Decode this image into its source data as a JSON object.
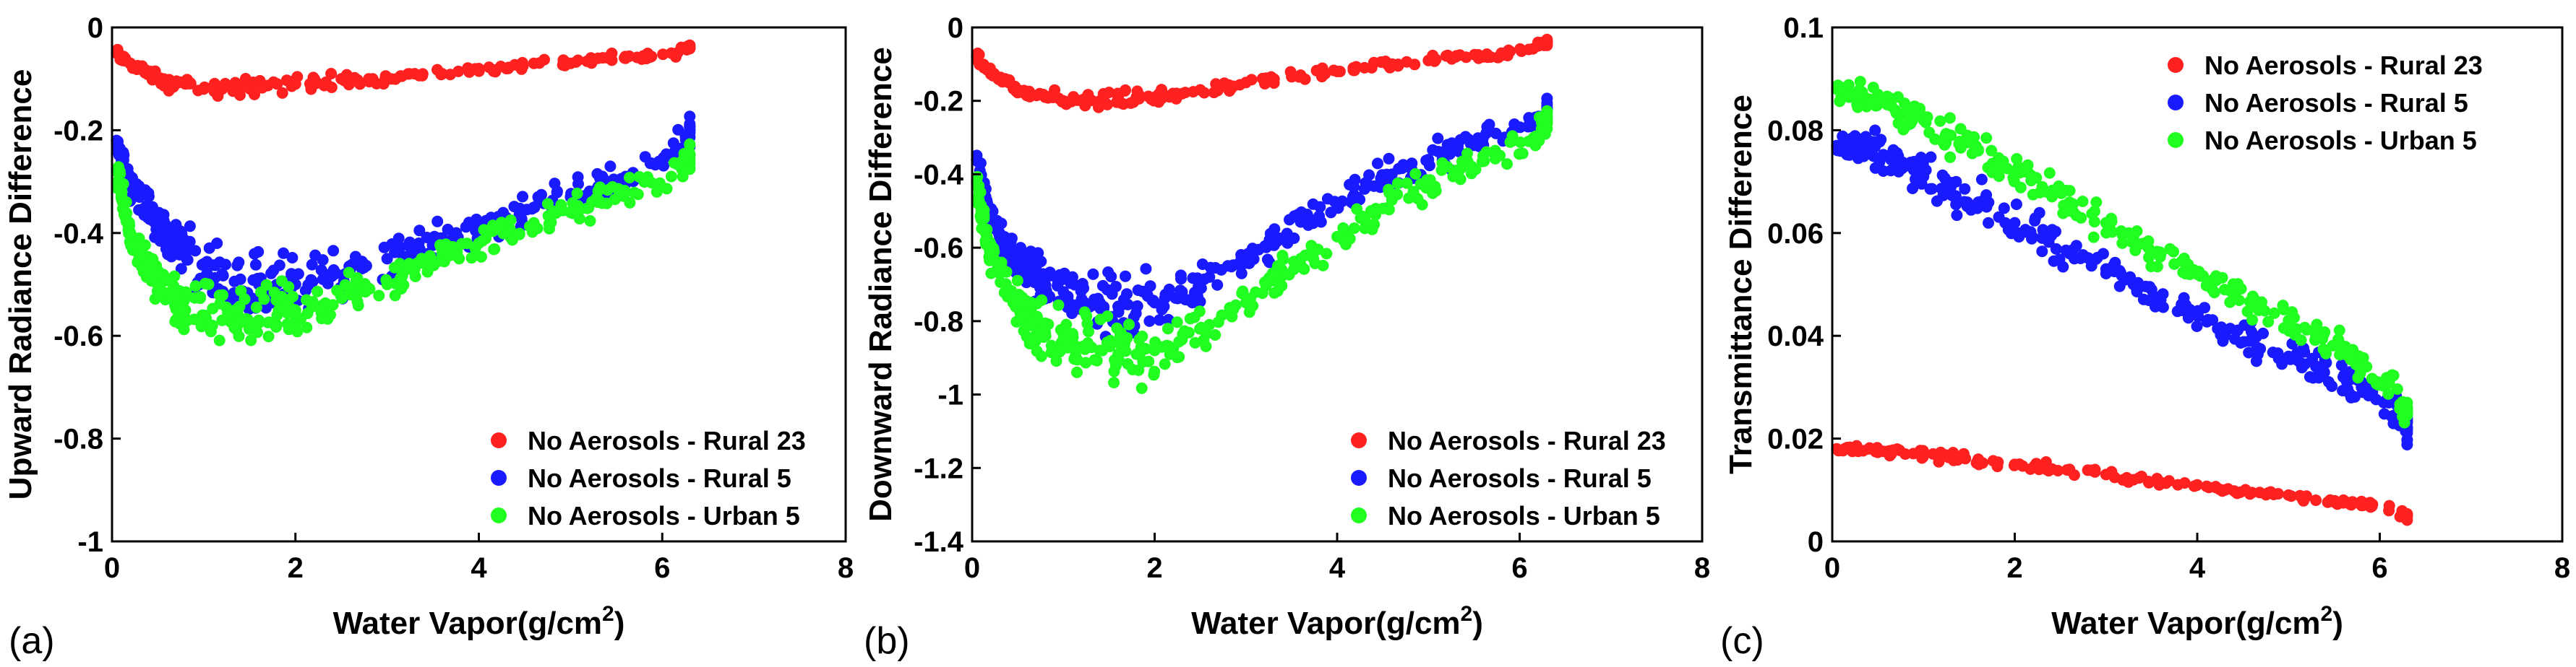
{
  "colors": {
    "red": "#ff2020",
    "blue": "#1a1aff",
    "green": "#20ff20"
  },
  "chart_data": [
    {
      "panel": "(a)",
      "type": "scatter",
      "xlabel": "Water Vapor(g/cm",
      "xlabel_sup": "2",
      "xlabel_end": ")",
      "ylabel": "Upward Radiance Difference",
      "xlim": [
        0,
        8
      ],
      "ylim": [
        -1,
        0
      ],
      "xticks": [
        0,
        2,
        4,
        6,
        8
      ],
      "xtick_labels": [
        "0",
        "2",
        "4",
        "6",
        "8"
      ],
      "yticks": [
        0,
        -0.2,
        -0.4,
        -0.6,
        -0.8,
        -1
      ],
      "ytick_labels": [
        "0",
        "-0.2",
        "-0.4",
        "-0.6",
        "-0.8",
        "-1"
      ],
      "legend_position": "lower-right",
      "series": [
        {
          "name": "No Aerosols - Rural 23",
          "color": "red",
          "x": [
            0.05,
            0.1,
            0.2,
            0.3,
            0.4,
            0.5,
            0.6,
            0.8,
            1.0,
            1.2,
            1.4,
            1.6,
            1.8,
            2.0,
            2.2,
            2.5,
            2.8,
            3.0,
            3.3,
            3.6,
            4.0,
            4.3,
            4.6,
            5.0,
            5.3,
            5.6,
            5.8,
            6.1,
            6.3
          ],
          "y": [
            -0.05,
            -0.06,
            -0.07,
            -0.08,
            -0.09,
            -0.1,
            -0.11,
            -0.11,
            -0.12,
            -0.12,
            -0.12,
            -0.11,
            -0.11,
            -0.11,
            -0.11,
            -0.1,
            -0.1,
            -0.1,
            -0.09,
            -0.09,
            -0.08,
            -0.08,
            -0.07,
            -0.07,
            -0.06,
            -0.06,
            -0.06,
            -0.05,
            -0.04
          ]
        },
        {
          "name": "No Aerosols - Rural 5",
          "color": "blue",
          "x": [
            0.05,
            0.1,
            0.15,
            0.2,
            0.3,
            0.4,
            0.5,
            0.6,
            0.7,
            0.8,
            1.0,
            1.2,
            1.4,
            1.6,
            1.8,
            2.0,
            2.3,
            2.6,
            3.0,
            3.3,
            3.6,
            4.0,
            4.3,
            4.6,
            5.0,
            5.3,
            5.6,
            6.1,
            6.3
          ],
          "y": [
            -0.22,
            -0.25,
            -0.28,
            -0.3,
            -0.33,
            -0.36,
            -0.38,
            -0.4,
            -0.42,
            -0.44,
            -0.46,
            -0.48,
            -0.49,
            -0.5,
            -0.5,
            -0.5,
            -0.49,
            -0.47,
            -0.45,
            -0.43,
            -0.41,
            -0.39,
            -0.37,
            -0.35,
            -0.33,
            -0.31,
            -0.29,
            -0.25,
            -0.2
          ]
        },
        {
          "name": "No Aerosols - Urban 5",
          "color": "green",
          "x": [
            0.05,
            0.1,
            0.15,
            0.2,
            0.3,
            0.4,
            0.5,
            0.6,
            0.7,
            0.8,
            1.0,
            1.2,
            1.4,
            1.6,
            1.8,
            2.0,
            2.3,
            2.6,
            3.0,
            3.3,
            3.6,
            4.0,
            4.3,
            4.6,
            5.0,
            5.3,
            5.6,
            6.1,
            6.3
          ],
          "y": [
            -0.28,
            -0.33,
            -0.37,
            -0.4,
            -0.44,
            -0.47,
            -0.5,
            -0.52,
            -0.54,
            -0.55,
            -0.56,
            -0.57,
            -0.57,
            -0.57,
            -0.56,
            -0.55,
            -0.54,
            -0.52,
            -0.5,
            -0.47,
            -0.44,
            -0.42,
            -0.4,
            -0.38,
            -0.36,
            -0.34,
            -0.32,
            -0.29,
            -0.25
          ]
        }
      ]
    },
    {
      "panel": "(b)",
      "type": "scatter",
      "xlabel": "Water Vapor(g/cm",
      "xlabel_sup": "2",
      "xlabel_end": ")",
      "ylabel": "Downward Radiance Difference",
      "xlim": [
        0,
        8
      ],
      "ylim": [
        -1.4,
        0
      ],
      "xticks": [
        0,
        2,
        4,
        6,
        8
      ],
      "xtick_labels": [
        "0",
        "2",
        "4",
        "6",
        "8"
      ],
      "yticks": [
        0,
        -0.2,
        -0.4,
        -0.6,
        -0.8,
        -1,
        -1.2,
        -1.4
      ],
      "ytick_labels": [
        "0",
        "-0.2",
        "-0.4",
        "-0.6",
        "-0.8",
        "-1",
        "-1.2",
        "-1.4"
      ],
      "legend_position": "lower-right",
      "series": [
        {
          "name": "No Aerosols - Rural 23",
          "color": "red",
          "x": [
            0.05,
            0.1,
            0.2,
            0.3,
            0.4,
            0.5,
            0.6,
            0.8,
            1.0,
            1.2,
            1.4,
            1.6,
            1.8,
            2.0,
            2.2,
            2.5,
            2.8,
            3.0,
            3.3,
            3.6,
            4.0,
            4.3,
            4.6,
            5.0,
            5.3,
            5.6,
            5.8,
            6.1,
            6.3
          ],
          "y": [
            -0.08,
            -0.1,
            -0.12,
            -0.14,
            -0.15,
            -0.17,
            -0.18,
            -0.19,
            -0.2,
            -0.2,
            -0.2,
            -0.19,
            -0.19,
            -0.19,
            -0.18,
            -0.17,
            -0.16,
            -0.15,
            -0.14,
            -0.13,
            -0.12,
            -0.11,
            -0.1,
            -0.09,
            -0.08,
            -0.08,
            -0.07,
            -0.06,
            -0.04
          ]
        },
        {
          "name": "No Aerosols - Rural 5",
          "color": "blue",
          "x": [
            0.05,
            0.1,
            0.15,
            0.2,
            0.3,
            0.4,
            0.5,
            0.6,
            0.7,
            0.8,
            1.0,
            1.2,
            1.4,
            1.6,
            1.8,
            2.0,
            2.3,
            2.6,
            3.0,
            3.3,
            3.6,
            4.0,
            4.3,
            4.6,
            5.0,
            5.3,
            5.6,
            6.1,
            6.3
          ],
          "y": [
            -0.36,
            -0.42,
            -0.47,
            -0.51,
            -0.56,
            -0.6,
            -0.63,
            -0.66,
            -0.68,
            -0.7,
            -0.72,
            -0.74,
            -0.75,
            -0.76,
            -0.76,
            -0.75,
            -0.72,
            -0.68,
            -0.63,
            -0.58,
            -0.53,
            -0.48,
            -0.44,
            -0.4,
            -0.36,
            -0.33,
            -0.3,
            -0.27,
            -0.22
          ]
        },
        {
          "name": "No Aerosols - Urban 5",
          "color": "green",
          "x": [
            0.05,
            0.1,
            0.15,
            0.2,
            0.3,
            0.4,
            0.5,
            0.6,
            0.7,
            0.8,
            1.0,
            1.2,
            1.4,
            1.6,
            1.8,
            2.0,
            2.3,
            2.6,
            3.0,
            3.3,
            3.6,
            4.0,
            4.3,
            4.6,
            5.0,
            5.3,
            5.6,
            6.1,
            6.3
          ],
          "y": [
            -0.42,
            -0.5,
            -0.56,
            -0.61,
            -0.67,
            -0.72,
            -0.76,
            -0.79,
            -0.81,
            -0.83,
            -0.85,
            -0.87,
            -0.88,
            -0.89,
            -0.89,
            -0.88,
            -0.85,
            -0.81,
            -0.75,
            -0.69,
            -0.63,
            -0.57,
            -0.52,
            -0.47,
            -0.43,
            -0.39,
            -0.35,
            -0.31,
            -0.25
          ]
        }
      ]
    },
    {
      "panel": "(c)",
      "type": "scatter",
      "xlabel": "Water Vapor(g/cm",
      "xlabel_sup": "2",
      "xlabel_end": ")",
      "ylabel": "Transmittance Difference",
      "xlim": [
        0,
        8
      ],
      "ylim": [
        0,
        0.1
      ],
      "xticks": [
        0,
        2,
        4,
        6,
        8
      ],
      "xtick_labels": [
        "0",
        "2",
        "4",
        "6",
        "8"
      ],
      "yticks": [
        0,
        0.02,
        0.04,
        0.06,
        0.08,
        0.1
      ],
      "ytick_labels": [
        "0",
        "0.02",
        "0.04",
        "0.06",
        "0.08",
        "0.1"
      ],
      "legend_position": "top-right",
      "series": [
        {
          "name": "No Aerosols - Rural 23",
          "color": "red",
          "x": [
            0.05,
            0.2,
            0.4,
            0.6,
            0.8,
            1.0,
            1.3,
            1.6,
            2.0,
            2.3,
            2.6,
            3.0,
            3.3,
            3.6,
            4.0,
            4.3,
            4.6,
            5.0,
            5.3,
            5.6,
            5.8,
            6.1,
            6.3
          ],
          "y": [
            0.018,
            0.018,
            0.018,
            0.0175,
            0.017,
            0.017,
            0.0165,
            0.016,
            0.015,
            0.0145,
            0.014,
            0.013,
            0.012,
            0.0115,
            0.011,
            0.01,
            0.0095,
            0.009,
            0.008,
            0.0075,
            0.007,
            0.006,
            0.005
          ]
        },
        {
          "name": "No Aerosols - Rural 5",
          "color": "blue",
          "x": [
            0.05,
            0.2,
            0.4,
            0.6,
            0.8,
            1.0,
            1.3,
            1.6,
            2.0,
            2.3,
            2.6,
            3.0,
            3.3,
            3.6,
            4.0,
            4.3,
            4.6,
            5.0,
            5.3,
            5.6,
            5.8,
            6.1,
            6.3
          ],
          "y": [
            0.077,
            0.077,
            0.076,
            0.075,
            0.073,
            0.071,
            0.069,
            0.066,
            0.062,
            0.059,
            0.056,
            0.053,
            0.05,
            0.047,
            0.044,
            0.041,
            0.039,
            0.036,
            0.034,
            0.032,
            0.03,
            0.027,
            0.022
          ]
        },
        {
          "name": "No Aerosols - Urban 5",
          "color": "green",
          "x": [
            0.05,
            0.2,
            0.4,
            0.6,
            0.8,
            1.0,
            1.3,
            1.6,
            2.0,
            2.3,
            2.6,
            3.0,
            3.3,
            3.6,
            4.0,
            4.3,
            4.6,
            5.0,
            5.3,
            5.6,
            5.8,
            6.1,
            6.3
          ],
          "y": [
            0.088,
            0.087,
            0.086,
            0.085,
            0.083,
            0.082,
            0.079,
            0.076,
            0.072,
            0.069,
            0.066,
            0.062,
            0.059,
            0.056,
            0.052,
            0.049,
            0.046,
            0.043,
            0.04,
            0.037,
            0.034,
            0.031,
            0.025
          ]
        }
      ]
    }
  ]
}
